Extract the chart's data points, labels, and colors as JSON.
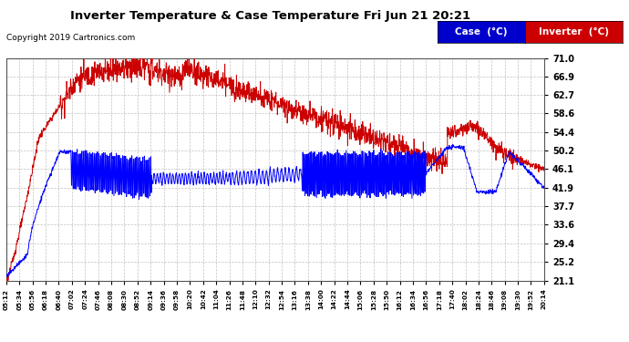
{
  "title": "Inverter Temperature & Case Temperature Fri Jun 21 20:21",
  "copyright": "Copyright 2019 Cartronics.com",
  "legend_case_label": "Case  (°C)",
  "legend_inverter_label": "Inverter  (°C)",
  "case_color": "#0000ff",
  "inverter_color": "#cc0000",
  "legend_case_bg": "#0000cc",
  "legend_inverter_bg": "#cc0000",
  "background_color": "#ffffff",
  "grid_color": "#bbbbbb",
  "y_ticks": [
    21.1,
    25.2,
    29.4,
    33.6,
    37.7,
    41.9,
    46.1,
    50.2,
    54.4,
    58.6,
    62.7,
    66.9,
    71.0
  ],
  "x_tick_labels": [
    "05:12",
    "05:34",
    "05:56",
    "06:18",
    "06:40",
    "07:02",
    "07:24",
    "07:46",
    "08:08",
    "08:30",
    "08:52",
    "09:14",
    "09:36",
    "09:58",
    "10:20",
    "10:42",
    "11:04",
    "11:26",
    "11:48",
    "12:10",
    "12:32",
    "12:54",
    "13:16",
    "13:38",
    "14:00",
    "14:22",
    "14:44",
    "15:06",
    "15:28",
    "15:50",
    "16:12",
    "16:34",
    "16:56",
    "17:18",
    "17:40",
    "18:02",
    "18:24",
    "18:46",
    "19:08",
    "19:30",
    "19:52",
    "20:14"
  ],
  "n_points": 1800,
  "ymin": 21.1,
  "ymax": 71.0
}
